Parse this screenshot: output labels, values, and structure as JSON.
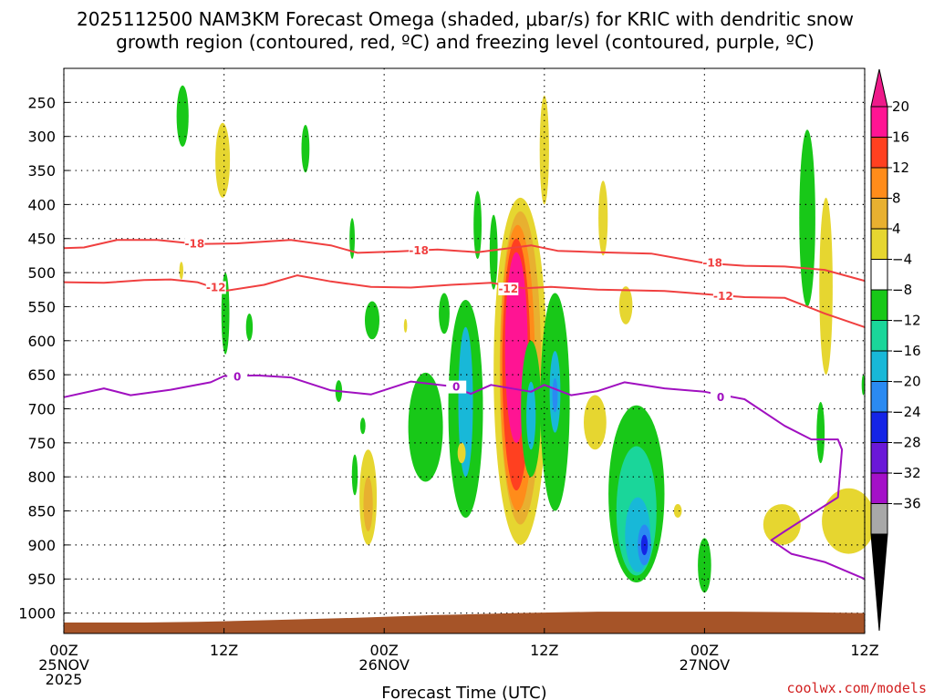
{
  "chart_data": {
    "type": "heatmap",
    "title_line1": "2025112500 NAM3KM Forecast Omega (shaded, μbar/s) for KRIC with dendritic snow",
    "title_line2": "growth region (contoured, red, ºC) and freezing level (contoured, purple, ºC)",
    "xlabel": "Forecast Time (UTC)",
    "ylabel": "",
    "x_range_hours": [
      0,
      60
    ],
    "y_range_hpa": [
      200,
      1030
    ],
    "y_ticks": [
      250,
      300,
      350,
      400,
      450,
      500,
      550,
      600,
      650,
      700,
      750,
      800,
      850,
      900,
      950,
      1000
    ],
    "y_tick_labels": [
      "250",
      "300",
      "350",
      "400",
      "450",
      "500",
      "550",
      "600",
      "650",
      "700",
      "750",
      "800",
      "850",
      "900",
      "950",
      "1000"
    ],
    "x_ticks": [
      {
        "hour": 0,
        "label": "00Z",
        "date": "25NOV",
        "year": "2025"
      },
      {
        "hour": 12,
        "label": "12Z",
        "date": "",
        "year": ""
      },
      {
        "hour": 24,
        "label": "00Z",
        "date": "26NOV",
        "year": ""
      },
      {
        "hour": 36,
        "label": "12Z",
        "date": "",
        "year": ""
      },
      {
        "hour": 48,
        "label": "00Z",
        "date": "27NOV",
        "year": ""
      },
      {
        "hour": 60,
        "label": "12Z",
        "date": "",
        "year": ""
      }
    ],
    "colorbar": {
      "levels": [
        "20",
        "16",
        "12",
        "8",
        "4",
        "−4",
        "−8",
        "−12",
        "−16",
        "−20",
        "−24",
        "−28",
        "−32",
        "−36"
      ],
      "colors": [
        "#ff1493",
        "#ff4020",
        "#ff8c1a",
        "#e8b030",
        "#e6d630",
        "#ffffff",
        "#18c818",
        "#1ad69a",
        "#18b8d8",
        "#2a8af2",
        "#1424e6",
        "#6a18d8",
        "#a410c8",
        "#a8a8a8"
      ],
      "top_color": "#ee1a8a",
      "bottom_color": "#000000"
    },
    "omega_features": [
      {
        "h": 8.9,
        "p": 270,
        "hw": 0.45,
        "hp": 45,
        "c": "#18c818"
      },
      {
        "h": 11.9,
        "p": 335,
        "hw": 0.55,
        "hp": 55,
        "c": "#e6d630"
      },
      {
        "h": 18.1,
        "p": 318,
        "hw": 0.3,
        "hp": 35,
        "c": "#18c818"
      },
      {
        "h": 8.8,
        "p": 497,
        "hw": 0.15,
        "hp": 13,
        "c": "#e6d630"
      },
      {
        "h": 21.6,
        "p": 450,
        "hw": 0.2,
        "hp": 30,
        "c": "#18c818"
      },
      {
        "h": 12.1,
        "p": 560,
        "hw": 0.3,
        "hp": 60,
        "c": "#18c818"
      },
      {
        "h": 13.9,
        "p": 580,
        "hw": 0.25,
        "hp": 20,
        "c": "#18c818"
      },
      {
        "h": 23.1,
        "p": 570,
        "hw": 0.55,
        "hp": 28,
        "c": "#18c818"
      },
      {
        "h": 20.6,
        "p": 674,
        "hw": 0.25,
        "hp": 16,
        "c": "#18c818"
      },
      {
        "h": 22.4,
        "p": 725,
        "hw": 0.2,
        "hp": 12,
        "c": "#18c818"
      },
      {
        "h": 21.8,
        "p": 797,
        "hw": 0.22,
        "hp": 30,
        "c": "#18c818"
      },
      {
        "h": 22.8,
        "p": 830,
        "hw": 0.65,
        "hp": 70,
        "c": "#e6d630"
      },
      {
        "h": 22.8,
        "p": 840,
        "hw": 0.35,
        "hp": 40,
        "c": "#e8b030"
      },
      {
        "h": 25.6,
        "p": 578,
        "hw": 0.12,
        "hp": 10,
        "c": "#e6d630"
      },
      {
        "h": 27.1,
        "p": 727,
        "hw": 1.3,
        "hp": 80,
        "c": "#18c818"
      },
      {
        "h": 28.5,
        "p": 560,
        "hw": 0.4,
        "hp": 30,
        "c": "#18c818"
      },
      {
        "h": 30.1,
        "p": 700,
        "hw": 1.3,
        "hp": 160,
        "c": "#18c818"
      },
      {
        "h": 30.1,
        "p": 690,
        "hw": 0.55,
        "hp": 110,
        "c": "#18b8d8"
      },
      {
        "h": 29.8,
        "p": 765,
        "hw": 0.3,
        "hp": 15,
        "c": "#e6d630"
      },
      {
        "h": 31.0,
        "p": 430,
        "hw": 0.3,
        "hp": 50,
        "c": "#18c818"
      },
      {
        "h": 32.2,
        "p": 470,
        "hw": 0.3,
        "hp": 55,
        "c": "#18c818"
      },
      {
        "h": 34.2,
        "p": 645,
        "hw": 2.0,
        "hp": 255,
        "c": "#e6d630"
      },
      {
        "h": 34.2,
        "p": 640,
        "hw": 1.55,
        "hp": 230,
        "c": "#e8b030"
      },
      {
        "h": 34.0,
        "p": 640,
        "hw": 1.3,
        "hp": 210,
        "c": "#ff8c1a"
      },
      {
        "h": 33.9,
        "p": 635,
        "hw": 1.05,
        "hp": 185,
        "c": "#ff4020"
      },
      {
        "h": 33.9,
        "p": 610,
        "hw": 0.85,
        "hp": 140,
        "c": "#ff1493"
      },
      {
        "h": 35.0,
        "p": 700,
        "hw": 0.75,
        "hp": 100,
        "c": "#18c818"
      },
      {
        "h": 35.0,
        "p": 710,
        "hw": 0.35,
        "hp": 50,
        "c": "#18b8d8"
      },
      {
        "h": 36.0,
        "p": 320,
        "hw": 0.35,
        "hp": 80,
        "c": "#e6d630"
      },
      {
        "h": 36.8,
        "p": 690,
        "hw": 1.1,
        "hp": 160,
        "c": "#18c818"
      },
      {
        "h": 36.8,
        "p": 675,
        "hw": 0.4,
        "hp": 60,
        "c": "#18b8d8"
      },
      {
        "h": 36.8,
        "p": 680,
        "hw": 0.2,
        "hp": 25,
        "c": "#2a8af2"
      },
      {
        "h": 39.8,
        "p": 720,
        "hw": 0.85,
        "hp": 40,
        "c": "#e6d630"
      },
      {
        "h": 42.4,
        "p": 720,
        "hw": 0.25,
        "hp": 18,
        "c": "#e6d630"
      },
      {
        "h": 40.4,
        "p": 420,
        "hw": 0.35,
        "hp": 55,
        "c": "#e6d630"
      },
      {
        "h": 42.1,
        "p": 548,
        "hw": 0.5,
        "hp": 28,
        "c": "#e6d630"
      },
      {
        "h": 42.9,
        "p": 825,
        "hw": 2.1,
        "hp": 130,
        "c": "#18c818"
      },
      {
        "h": 42.9,
        "p": 850,
        "hw": 1.5,
        "hp": 95,
        "c": "#1ad69a"
      },
      {
        "h": 43.0,
        "p": 885,
        "hw": 0.95,
        "hp": 55,
        "c": "#18b8d8"
      },
      {
        "h": 43.5,
        "p": 900,
        "hw": 0.5,
        "hp": 30,
        "c": "#2a8af2"
      },
      {
        "h": 43.5,
        "p": 900,
        "hw": 0.25,
        "hp": 15,
        "c": "#1424e6"
      },
      {
        "h": 46.0,
        "p": 850,
        "hw": 0.3,
        "hp": 10,
        "c": "#e6d630"
      },
      {
        "h": 48.0,
        "p": 930,
        "hw": 0.5,
        "hp": 40,
        "c": "#18c818"
      },
      {
        "h": 53.8,
        "p": 870,
        "hw": 1.4,
        "hp": 30,
        "c": "#e6d630"
      },
      {
        "h": 55.7,
        "p": 420,
        "hw": 0.6,
        "hp": 130,
        "c": "#18c818"
      },
      {
        "h": 57.1,
        "p": 520,
        "hw": 0.5,
        "hp": 130,
        "c": "#e6d630"
      },
      {
        "h": 56.7,
        "p": 735,
        "hw": 0.3,
        "hp": 45,
        "c": "#18c818"
      },
      {
        "h": 58.8,
        "p": 865,
        "hw": 2.0,
        "hp": 48,
        "c": "#e6d630"
      },
      {
        "h": 59.9,
        "p": 665,
        "hw": 0.12,
        "hp": 15,
        "c": "#18c818"
      }
    ],
    "contours": [
      {
        "name": "-18",
        "color": "#f04040",
        "points": [
          [
            0,
            464
          ],
          [
            1.5,
            463
          ],
          [
            4,
            452
          ],
          [
            7,
            452
          ],
          [
            10,
            458
          ],
          [
            13,
            457
          ],
          [
            17,
            452
          ],
          [
            20,
            460
          ],
          [
            22,
            471
          ],
          [
            25,
            469
          ],
          [
            28,
            466
          ],
          [
            31,
            470
          ],
          [
            33,
            465
          ],
          [
            35,
            460
          ],
          [
            37,
            468
          ],
          [
            40,
            470
          ],
          [
            44,
            472
          ],
          [
            48,
            486
          ],
          [
            51,
            490
          ],
          [
            54,
            491
          ],
          [
            57,
            496
          ],
          [
            60,
            512
          ]
        ],
        "labels": [
          [
            9.8,
            458
          ],
          [
            26.6,
            468
          ],
          [
            48.6,
            486
          ]
        ]
      },
      {
        "name": "-12",
        "color": "#f04040",
        "points": [
          [
            0,
            514
          ],
          [
            3,
            515
          ],
          [
            6,
            511
          ],
          [
            8,
            510
          ],
          [
            10,
            514
          ],
          [
            12,
            527
          ],
          [
            15,
            518
          ],
          [
            17.5,
            504
          ],
          [
            20,
            513
          ],
          [
            23,
            521
          ],
          [
            26,
            522
          ],
          [
            29,
            518
          ],
          [
            32,
            515
          ],
          [
            34.5,
            523
          ],
          [
            36.5,
            521
          ],
          [
            40,
            525
          ],
          [
            45,
            527
          ],
          [
            47,
            530
          ],
          [
            51,
            536
          ],
          [
            54,
            537
          ],
          [
            57,
            560
          ],
          [
            60,
            580
          ]
        ],
        "labels": [
          [
            11.4,
            522
          ],
          [
            33.3,
            524
          ],
          [
            49.4,
            535
          ]
        ]
      },
      {
        "name": "0",
        "color": "#a010c0",
        "points": [
          [
            0,
            683
          ],
          [
            3,
            670
          ],
          [
            5,
            680
          ],
          [
            8,
            672
          ],
          [
            11,
            661
          ],
          [
            12,
            652
          ],
          [
            14.5,
            651
          ],
          [
            17,
            654
          ],
          [
            20,
            673
          ],
          [
            23,
            679
          ],
          [
            26,
            660
          ],
          [
            29,
            667
          ],
          [
            30.5,
            678
          ],
          [
            32,
            665
          ],
          [
            35,
            675
          ],
          [
            36,
            665
          ],
          [
            38,
            680
          ],
          [
            40,
            674
          ],
          [
            42,
            661
          ],
          [
            45,
            670
          ],
          [
            48,
            675
          ],
          [
            51,
            686
          ],
          [
            54,
            725
          ],
          [
            56,
            745
          ],
          [
            58,
            745
          ],
          [
            58.3,
            760
          ],
          [
            58,
            830
          ],
          [
            54,
            880
          ],
          [
            53,
            893
          ],
          [
            54.5,
            913
          ],
          [
            57,
            925
          ],
          [
            60,
            950
          ]
        ],
        "labels": [
          [
            13,
            653
          ],
          [
            29.4,
            668
          ],
          [
            49.2,
            683
          ]
        ]
      }
    ],
    "terrain": {
      "color": "#a65428",
      "points": [
        [
          0,
          1014
        ],
        [
          6,
          1014
        ],
        [
          10,
          1013
        ],
        [
          12,
          1012
        ],
        [
          16,
          1010
        ],
        [
          22,
          1007
        ],
        [
          28,
          1003
        ],
        [
          34,
          1000
        ],
        [
          40,
          998
        ],
        [
          50,
          998
        ],
        [
          56,
          999
        ],
        [
          60,
          1000
        ]
      ]
    }
  },
  "credit": "coolwx.com/models"
}
